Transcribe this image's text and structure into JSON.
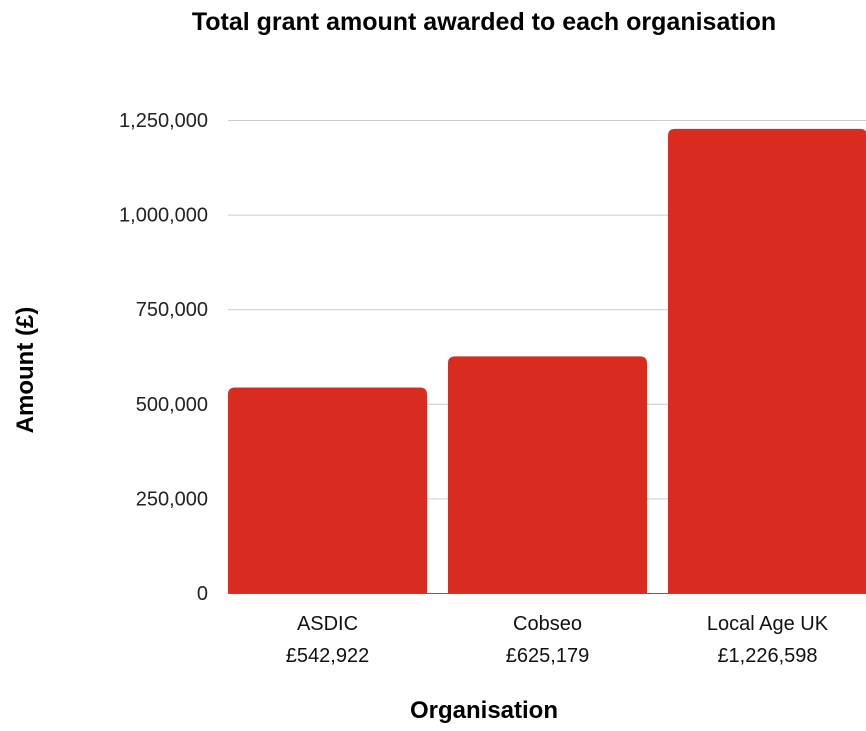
{
  "chart_data": {
    "type": "bar",
    "title": "Total grant amount awarded to each organisation",
    "xlabel": "Organisation",
    "ylabel": "Amount (£)",
    "categories": [
      "ASDIC",
      "Cobseo",
      "Local Age UK"
    ],
    "category_amount_labels": [
      "£542,922",
      "£625,179",
      "£1,226,598"
    ],
    "values": [
      542922,
      625179,
      1226598
    ],
    "ylim": [
      0,
      1250000
    ],
    "yticks": [
      0,
      250000,
      500000,
      750000,
      1000000,
      1250000
    ],
    "ytick_labels": [
      "0",
      "250,000",
      "500,000",
      "750,000",
      "1,000,000",
      "1,250,000"
    ],
    "grid": true,
    "legend": "none",
    "bar_color": "#d92b20",
    "grid_color": "#cccccc"
  }
}
